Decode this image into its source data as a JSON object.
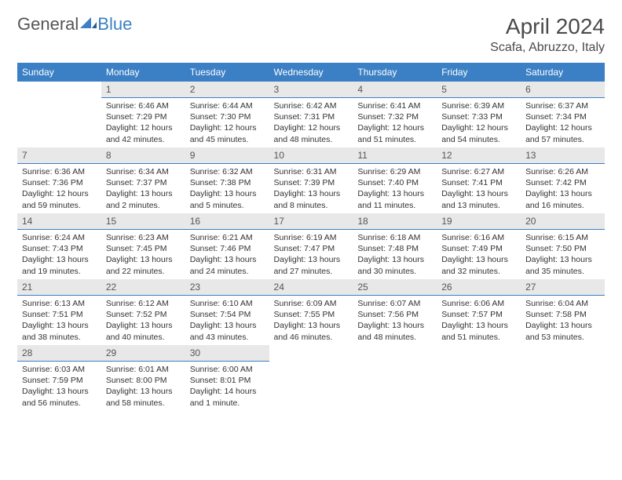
{
  "logo": {
    "text_gray": "General",
    "text_blue": "Blue"
  },
  "header": {
    "month_title": "April 2024",
    "location": "Scafa, Abruzzo, Italy"
  },
  "colors": {
    "header_bg": "#3b7fc4",
    "header_fg": "#ffffff",
    "daynum_bg": "#e8e8e8",
    "daynum_border": "#3b7fc4",
    "text": "#333333"
  },
  "weekdays": [
    "Sunday",
    "Monday",
    "Tuesday",
    "Wednesday",
    "Thursday",
    "Friday",
    "Saturday"
  ],
  "weeks": [
    [
      {
        "empty": true
      },
      {
        "num": "1",
        "sunrise": "Sunrise: 6:46 AM",
        "sunset": "Sunset: 7:29 PM",
        "daylight": "Daylight: 12 hours and 42 minutes."
      },
      {
        "num": "2",
        "sunrise": "Sunrise: 6:44 AM",
        "sunset": "Sunset: 7:30 PM",
        "daylight": "Daylight: 12 hours and 45 minutes."
      },
      {
        "num": "3",
        "sunrise": "Sunrise: 6:42 AM",
        "sunset": "Sunset: 7:31 PM",
        "daylight": "Daylight: 12 hours and 48 minutes."
      },
      {
        "num": "4",
        "sunrise": "Sunrise: 6:41 AM",
        "sunset": "Sunset: 7:32 PM",
        "daylight": "Daylight: 12 hours and 51 minutes."
      },
      {
        "num": "5",
        "sunrise": "Sunrise: 6:39 AM",
        "sunset": "Sunset: 7:33 PM",
        "daylight": "Daylight: 12 hours and 54 minutes."
      },
      {
        "num": "6",
        "sunrise": "Sunrise: 6:37 AM",
        "sunset": "Sunset: 7:34 PM",
        "daylight": "Daylight: 12 hours and 57 minutes."
      }
    ],
    [
      {
        "num": "7",
        "sunrise": "Sunrise: 6:36 AM",
        "sunset": "Sunset: 7:36 PM",
        "daylight": "Daylight: 12 hours and 59 minutes."
      },
      {
        "num": "8",
        "sunrise": "Sunrise: 6:34 AM",
        "sunset": "Sunset: 7:37 PM",
        "daylight": "Daylight: 13 hours and 2 minutes."
      },
      {
        "num": "9",
        "sunrise": "Sunrise: 6:32 AM",
        "sunset": "Sunset: 7:38 PM",
        "daylight": "Daylight: 13 hours and 5 minutes."
      },
      {
        "num": "10",
        "sunrise": "Sunrise: 6:31 AM",
        "sunset": "Sunset: 7:39 PM",
        "daylight": "Daylight: 13 hours and 8 minutes."
      },
      {
        "num": "11",
        "sunrise": "Sunrise: 6:29 AM",
        "sunset": "Sunset: 7:40 PM",
        "daylight": "Daylight: 13 hours and 11 minutes."
      },
      {
        "num": "12",
        "sunrise": "Sunrise: 6:27 AM",
        "sunset": "Sunset: 7:41 PM",
        "daylight": "Daylight: 13 hours and 13 minutes."
      },
      {
        "num": "13",
        "sunrise": "Sunrise: 6:26 AM",
        "sunset": "Sunset: 7:42 PM",
        "daylight": "Daylight: 13 hours and 16 minutes."
      }
    ],
    [
      {
        "num": "14",
        "sunrise": "Sunrise: 6:24 AM",
        "sunset": "Sunset: 7:43 PM",
        "daylight": "Daylight: 13 hours and 19 minutes."
      },
      {
        "num": "15",
        "sunrise": "Sunrise: 6:23 AM",
        "sunset": "Sunset: 7:45 PM",
        "daylight": "Daylight: 13 hours and 22 minutes."
      },
      {
        "num": "16",
        "sunrise": "Sunrise: 6:21 AM",
        "sunset": "Sunset: 7:46 PM",
        "daylight": "Daylight: 13 hours and 24 minutes."
      },
      {
        "num": "17",
        "sunrise": "Sunrise: 6:19 AM",
        "sunset": "Sunset: 7:47 PM",
        "daylight": "Daylight: 13 hours and 27 minutes."
      },
      {
        "num": "18",
        "sunrise": "Sunrise: 6:18 AM",
        "sunset": "Sunset: 7:48 PM",
        "daylight": "Daylight: 13 hours and 30 minutes."
      },
      {
        "num": "19",
        "sunrise": "Sunrise: 6:16 AM",
        "sunset": "Sunset: 7:49 PM",
        "daylight": "Daylight: 13 hours and 32 minutes."
      },
      {
        "num": "20",
        "sunrise": "Sunrise: 6:15 AM",
        "sunset": "Sunset: 7:50 PM",
        "daylight": "Daylight: 13 hours and 35 minutes."
      }
    ],
    [
      {
        "num": "21",
        "sunrise": "Sunrise: 6:13 AM",
        "sunset": "Sunset: 7:51 PM",
        "daylight": "Daylight: 13 hours and 38 minutes."
      },
      {
        "num": "22",
        "sunrise": "Sunrise: 6:12 AM",
        "sunset": "Sunset: 7:52 PM",
        "daylight": "Daylight: 13 hours and 40 minutes."
      },
      {
        "num": "23",
        "sunrise": "Sunrise: 6:10 AM",
        "sunset": "Sunset: 7:54 PM",
        "daylight": "Daylight: 13 hours and 43 minutes."
      },
      {
        "num": "24",
        "sunrise": "Sunrise: 6:09 AM",
        "sunset": "Sunset: 7:55 PM",
        "daylight": "Daylight: 13 hours and 46 minutes."
      },
      {
        "num": "25",
        "sunrise": "Sunrise: 6:07 AM",
        "sunset": "Sunset: 7:56 PM",
        "daylight": "Daylight: 13 hours and 48 minutes."
      },
      {
        "num": "26",
        "sunrise": "Sunrise: 6:06 AM",
        "sunset": "Sunset: 7:57 PM",
        "daylight": "Daylight: 13 hours and 51 minutes."
      },
      {
        "num": "27",
        "sunrise": "Sunrise: 6:04 AM",
        "sunset": "Sunset: 7:58 PM",
        "daylight": "Daylight: 13 hours and 53 minutes."
      }
    ],
    [
      {
        "num": "28",
        "sunrise": "Sunrise: 6:03 AM",
        "sunset": "Sunset: 7:59 PM",
        "daylight": "Daylight: 13 hours and 56 minutes."
      },
      {
        "num": "29",
        "sunrise": "Sunrise: 6:01 AM",
        "sunset": "Sunset: 8:00 PM",
        "daylight": "Daylight: 13 hours and 58 minutes."
      },
      {
        "num": "30",
        "sunrise": "Sunrise: 6:00 AM",
        "sunset": "Sunset: 8:01 PM",
        "daylight": "Daylight: 14 hours and 1 minute."
      },
      {
        "empty": true
      },
      {
        "empty": true
      },
      {
        "empty": true
      },
      {
        "empty": true
      }
    ]
  ]
}
